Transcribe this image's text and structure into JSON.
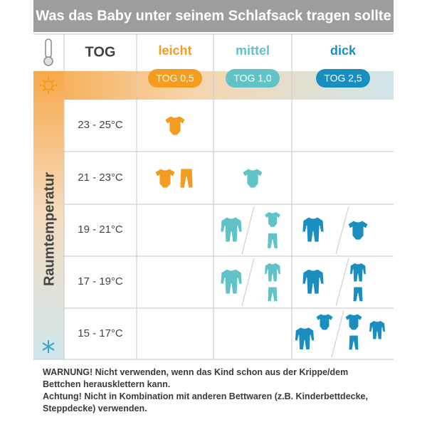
{
  "title": "Was das Baby unter seinem Schlafsack tragen sollte",
  "header": {
    "tog": "TOG",
    "columns": [
      {
        "name": "leicht",
        "tog": "TOG 0,5"
      },
      {
        "name": "mittel",
        "tog": "TOG 1,0"
      },
      {
        "name": "dick",
        "tog": "TOG 2,5"
      }
    ]
  },
  "side_label": "Raumtemperatur",
  "rows": [
    "23 - 25°C",
    "21 - 23°C",
    "19 - 21°C",
    "17 - 19°C",
    "15 - 17°C"
  ],
  "warning": [
    "WARNUNG! Nicht verwenden, wenn das Kind schon aus der Krippe/dem",
    "Bettchen herausklettern kann.",
    "Achtung! Nicht in Kombination mit anderen Bettwaren (z.B. Kinderbettdecke,",
    "Steppdecke) verwenden."
  ]
}
